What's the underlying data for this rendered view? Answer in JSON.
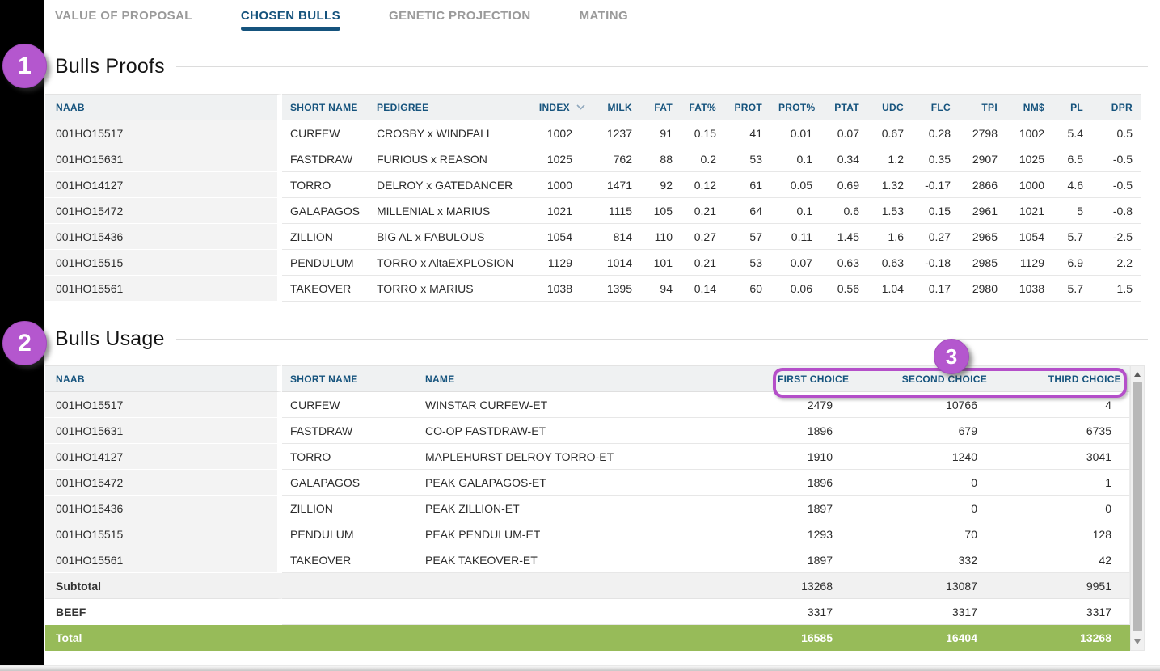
{
  "tabs": [
    {
      "label": "VALUE OF PROPOSAL",
      "active": false
    },
    {
      "label": "CHOSEN BULLS",
      "active": true
    },
    {
      "label": "GENETIC PROJECTION",
      "active": false
    },
    {
      "label": "MATING",
      "active": false
    }
  ],
  "annotations": {
    "step1": "1",
    "step2": "2",
    "step3": "3"
  },
  "proofs": {
    "title": "Bulls Proofs",
    "sorted_by": "INDEX",
    "columns": [
      "NAAB",
      "SHORT NAME",
      "PEDIGREE",
      "INDEX",
      "MILK",
      "FAT",
      "FAT%",
      "PROT",
      "PROT%",
      "PTAT",
      "UDC",
      "FLC",
      "TPI",
      "NM$",
      "PL",
      "DPR"
    ],
    "rows": [
      [
        "001HO15517",
        "CURFEW",
        "CROSBY x WINDFALL",
        "1002",
        "1237",
        "91",
        "0.15",
        "41",
        "0.01",
        "0.07",
        "0.67",
        "0.28",
        "2798",
        "1002",
        "5.4",
        "0.5"
      ],
      [
        "001HO15631",
        "FASTDRAW",
        "FURIOUS x REASON",
        "1025",
        "762",
        "88",
        "0.2",
        "53",
        "0.1",
        "0.34",
        "1.2",
        "0.35",
        "2907",
        "1025",
        "6.5",
        "-0.5"
      ],
      [
        "001HO14127",
        "TORRO",
        "DELROY x GATEDANCER",
        "1000",
        "1471",
        "92",
        "0.12",
        "61",
        "0.05",
        "0.69",
        "1.32",
        "-0.17",
        "2866",
        "1000",
        "4.6",
        "-0.5"
      ],
      [
        "001HO15472",
        "GALAPAGOS",
        "MILLENIAL x MARIUS",
        "1021",
        "1115",
        "105",
        "0.21",
        "64",
        "0.1",
        "0.6",
        "1.53",
        "0.15",
        "2961",
        "1021",
        "5",
        "-0.8"
      ],
      [
        "001HO15436",
        "ZILLION",
        "BIG AL x FABULOUS",
        "1054",
        "814",
        "110",
        "0.27",
        "57",
        "0.11",
        "1.45",
        "1.6",
        "0.27",
        "2965",
        "1054",
        "5.7",
        "-2.5"
      ],
      [
        "001HO15515",
        "PENDULUM",
        "TORRO x AltaEXPLOSION",
        "1129",
        "1014",
        "101",
        "0.21",
        "53",
        "0.07",
        "0.63",
        "0.63",
        "-0.18",
        "2985",
        "1129",
        "6.9",
        "2.2"
      ],
      [
        "001HO15561",
        "TAKEOVER",
        "TORRO x MARIUS",
        "1038",
        "1395",
        "94",
        "0.14",
        "60",
        "0.06",
        "0.56",
        "1.04",
        "0.17",
        "2980",
        "1038",
        "5.7",
        "1.5"
      ]
    ]
  },
  "usage": {
    "title": "Bulls Usage",
    "columns": [
      "NAAB",
      "SHORT NAME",
      "NAME",
      "FIRST CHOICE",
      "SECOND CHOICE",
      "THIRD CHOICE"
    ],
    "rows": [
      {
        "type": "data",
        "cells": [
          "001HO15517",
          "CURFEW",
          "WINSTAR CURFEW-ET",
          "2479",
          "10766",
          "4"
        ]
      },
      {
        "type": "data",
        "cells": [
          "001HO15631",
          "FASTDRAW",
          "CO-OP FASTDRAW-ET",
          "1896",
          "679",
          "6735"
        ]
      },
      {
        "type": "data",
        "cells": [
          "001HO14127",
          "TORRO",
          "MAPLEHURST DELROY TORRO-ET",
          "1910",
          "1240",
          "3041"
        ]
      },
      {
        "type": "data",
        "cells": [
          "001HO15472",
          "GALAPAGOS",
          "PEAK GALAPAGOS-ET",
          "1896",
          "0",
          "1"
        ]
      },
      {
        "type": "data",
        "cells": [
          "001HO15436",
          "ZILLION",
          "PEAK ZILLION-ET",
          "1897",
          "0",
          "0"
        ]
      },
      {
        "type": "data",
        "cells": [
          "001HO15515",
          "PENDULUM",
          "PEAK PENDULUM-ET",
          "1293",
          "70",
          "128"
        ]
      },
      {
        "type": "data",
        "cells": [
          "001HO15561",
          "TAKEOVER",
          "PEAK TAKEOVER-ET",
          "1897",
          "332",
          "42"
        ]
      },
      {
        "type": "subtotal",
        "cells": [
          "Subtotal",
          "",
          "",
          "13268",
          "13087",
          "9951"
        ]
      },
      {
        "type": "beef",
        "cells": [
          "BEEF",
          "",
          "",
          "3317",
          "3317",
          "3317"
        ]
      },
      {
        "type": "total",
        "cells": [
          "Total",
          "",
          "",
          "16585",
          "16404",
          "13268"
        ]
      }
    ]
  },
  "colors": {
    "accent_blue": "#15537d",
    "total_green": "#97bb59",
    "annotation_purple": "#b457ce",
    "tab_inactive": "#9a9a9a"
  }
}
